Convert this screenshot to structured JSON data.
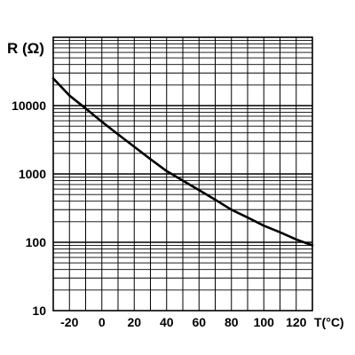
{
  "chart_data": {
    "type": "line",
    "scale_y": "log",
    "grid": true,
    "xlim": [
      -30,
      130
    ],
    "ylim": [
      10,
      100000
    ],
    "x_ticks": [
      "-20",
      "0",
      "20",
      "40",
      "60",
      "80",
      "100",
      "120"
    ],
    "y_ticks": [
      "10",
      "100",
      "1000",
      "10000"
    ],
    "ylabel": "R (Ω)",
    "xlabel": "T(°C)",
    "series": [
      {
        "x": [
          -30,
          -20,
          -10,
          0,
          10,
          20,
          30,
          40,
          50,
          60,
          70,
          80,
          90,
          100,
          110,
          120,
          130
        ],
        "y": [
          25000,
          14000,
          9100,
          5800,
          3800,
          2500,
          1650,
          1100,
          800,
          580,
          420,
          300,
          230,
          175,
          140,
          110,
          90
        ]
      }
    ]
  }
}
